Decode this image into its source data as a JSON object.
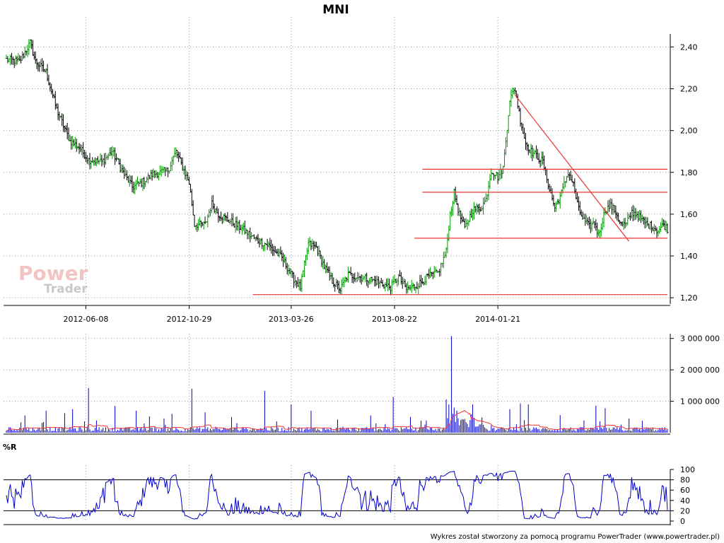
{
  "chart_data": [
    {
      "panel": "price",
      "type": "bar",
      "title": "MNI",
      "y_tick_labels": [
        "2,40",
        "2,20",
        "2,00",
        "1,80",
        "1,60",
        "1,40",
        "1,20"
      ],
      "x_tick_labels": [
        "2012-06-08",
        "2012-10-29",
        "2013-03-26",
        "2013-08-22",
        "2014-01-21"
      ],
      "ylim": [
        1.17,
        2.53
      ],
      "grid": true,
      "n_bars": 500,
      "close_anchors": [
        [
          0,
          2.34
        ],
        [
          10,
          2.33
        ],
        [
          18,
          2.42
        ],
        [
          22,
          2.33
        ],
        [
          30,
          2.28
        ],
        [
          38,
          2.1
        ],
        [
          48,
          1.95
        ],
        [
          55,
          1.92
        ],
        [
          62,
          1.86
        ],
        [
          72,
          1.85
        ],
        [
          80,
          1.9
        ],
        [
          88,
          1.8
        ],
        [
          95,
          1.73
        ],
        [
          102,
          1.75
        ],
        [
          110,
          1.79
        ],
        [
          116,
          1.8
        ],
        [
          122,
          1.81
        ],
        [
          128,
          1.9
        ],
        [
          132,
          1.84
        ],
        [
          138,
          1.75
        ],
        [
          142,
          1.55
        ],
        [
          150,
          1.55
        ],
        [
          155,
          1.65
        ],
        [
          160,
          1.6
        ],
        [
          168,
          1.57
        ],
        [
          178,
          1.53
        ],
        [
          188,
          1.48
        ],
        [
          198,
          1.45
        ],
        [
          208,
          1.39
        ],
        [
          216,
          1.3
        ],
        [
          222,
          1.25
        ],
        [
          228,
          1.46
        ],
        [
          234,
          1.44
        ],
        [
          240,
          1.35
        ],
        [
          246,
          1.28
        ],
        [
          252,
          1.24
        ],
        [
          258,
          1.31
        ],
        [
          266,
          1.3
        ],
        [
          274,
          1.29
        ],
        [
          282,
          1.27
        ],
        [
          290,
          1.25
        ],
        [
          296,
          1.3
        ],
        [
          302,
          1.24
        ],
        [
          310,
          1.26
        ],
        [
          318,
          1.3
        ],
        [
          326,
          1.32
        ],
        [
          332,
          1.42
        ],
        [
          335,
          1.6
        ],
        [
          338,
          1.7
        ],
        [
          342,
          1.6
        ],
        [
          346,
          1.53
        ],
        [
          352,
          1.62
        ],
        [
          358,
          1.63
        ],
        [
          362,
          1.67
        ],
        [
          366,
          1.81
        ],
        [
          371,
          1.78
        ],
        [
          375,
          1.82
        ],
        [
          380,
          2.15
        ],
        [
          384,
          2.2
        ],
        [
          388,
          2.05
        ],
        [
          392,
          1.94
        ],
        [
          396,
          1.9
        ],
        [
          400,
          1.88
        ],
        [
          405,
          1.85
        ],
        [
          410,
          1.72
        ],
        [
          414,
          1.63
        ],
        [
          419,
          1.7
        ],
        [
          424,
          1.8
        ],
        [
          428,
          1.74
        ],
        [
          432,
          1.62
        ],
        [
          436,
          1.57
        ],
        [
          440,
          1.54
        ],
        [
          444,
          1.56
        ],
        [
          447,
          1.5
        ],
        [
          452,
          1.62
        ],
        [
          456,
          1.64
        ],
        [
          460,
          1.61
        ],
        [
          464,
          1.55
        ],
        [
          468,
          1.55
        ],
        [
          472,
          1.61
        ],
        [
          476,
          1.6
        ],
        [
          480,
          1.57
        ],
        [
          484,
          1.55
        ],
        [
          488,
          1.54
        ],
        [
          492,
          1.52
        ],
        [
          496,
          1.55
        ],
        [
          499,
          1.53
        ]
      ],
      "support_resistance_levels": [
        {
          "value": 1.815,
          "start_index": 314,
          "end_index": 499
        },
        {
          "value": 1.705,
          "start_index": 314,
          "end_index": 499
        },
        {
          "value": 1.485,
          "start_index": 308,
          "end_index": 499
        },
        {
          "value": 1.215,
          "start_index": 186,
          "end_index": 499
        }
      ],
      "trendline": {
        "start": [
          384,
          2.17
        ],
        "end": [
          470,
          1.47
        ]
      },
      "colors": {
        "up": "#009900",
        "down": "#000000",
        "levels": "#ee3333"
      }
    },
    {
      "panel": "volume",
      "type": "bar",
      "y_tick_labels": [
        "3 000 000",
        "2 000 000",
        "1 000 000"
      ],
      "ylim": [
        0,
        3150000
      ],
      "grid": true,
      "n_bars": 500,
      "spikes": [
        [
          14,
          550000
        ],
        [
          30,
          700000
        ],
        [
          44,
          620000
        ],
        [
          50,
          750000
        ],
        [
          62,
          1420000
        ],
        [
          82,
          850000
        ],
        [
          98,
          700000
        ],
        [
          108,
          520000
        ],
        [
          125,
          600000
        ],
        [
          140,
          1400000
        ],
        [
          150,
          650000
        ],
        [
          170,
          500000
        ],
        [
          195,
          1330000
        ],
        [
          215,
          900000
        ],
        [
          230,
          700000
        ],
        [
          250,
          420000
        ],
        [
          275,
          550000
        ],
        [
          292,
          1140000
        ],
        [
          305,
          500000
        ],
        [
          332,
          1060000
        ],
        [
          334,
          900000
        ],
        [
          336,
          3070000
        ],
        [
          338,
          800000
        ],
        [
          340,
          700000
        ],
        [
          352,
          900000
        ],
        [
          380,
          750000
        ],
        [
          388,
          930000
        ],
        [
          394,
          900000
        ],
        [
          418,
          560000
        ],
        [
          445,
          860000
        ],
        [
          452,
          780000
        ],
        [
          470,
          450000
        ],
        [
          480,
          380000
        ]
      ],
      "average_line_color": "#ee3333",
      "bar_color": "#0000cc"
    },
    {
      "panel": "williams_r",
      "type": "line",
      "label": "%R",
      "y_tick_labels": [
        "100",
        "80",
        "60",
        "40",
        "20",
        "0"
      ],
      "ylim": [
        0,
        100
      ],
      "reference_lines": [
        80,
        20
      ],
      "n_points": 500,
      "color": "#0000cc"
    }
  ],
  "footer": {
    "credit": "Wykres został stworzony za pomocą programu PowerTrader (www.powertrader.pl)"
  },
  "watermark": {
    "power": "Power",
    "trader": "Trader"
  }
}
